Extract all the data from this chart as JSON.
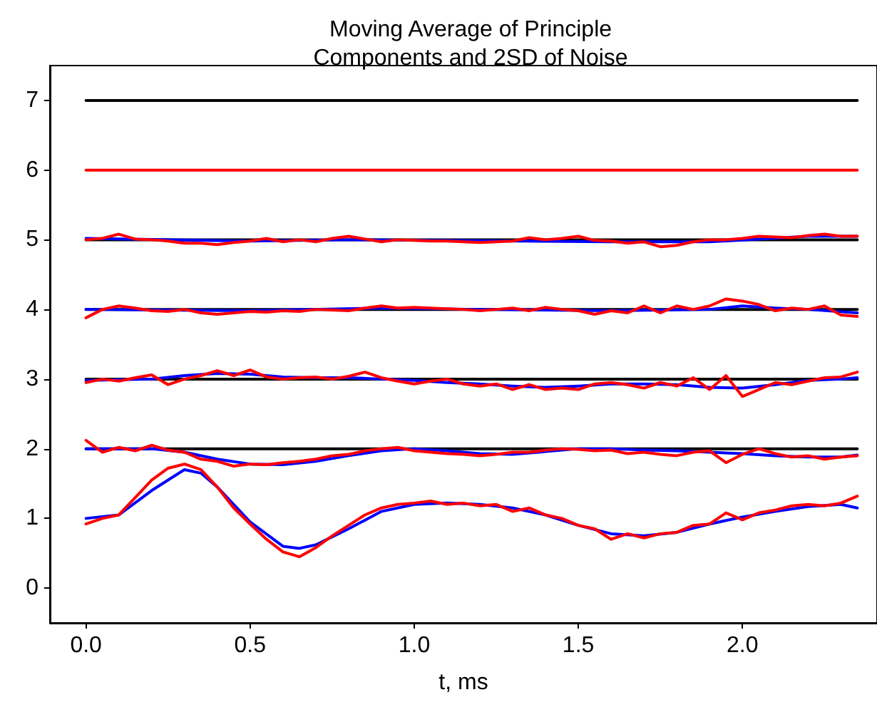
{
  "chart_data": {
    "type": "line",
    "title": "Moving Average of Principle\nComponents and 2SD of Noise",
    "xlabel": "t, ms",
    "xlim": [
      -0.11,
      2.41
    ],
    "xticks": [
      {
        "value": 0,
        "label": "0.0"
      },
      {
        "value": 0.5,
        "label": "0.5"
      },
      {
        "value": 1,
        "label": "1.0"
      },
      {
        "value": 1.5,
        "label": "1.5"
      },
      {
        "value": 2,
        "label": "2.0"
      }
    ],
    "ylim": [
      -0.5,
      7.5
    ],
    "yticks": [
      0,
      1,
      2,
      3,
      4,
      5,
      6,
      7
    ],
    "grid": false,
    "marker": "none",
    "line_style": "solid",
    "series": [
      {
        "color": "#000000",
        "x": [
          0,
          2.35
        ],
        "values": [
          7,
          7
        ]
      },
      {
        "color": "#000000",
        "x": [
          0,
          2.35
        ],
        "values": [
          5,
          5
        ]
      },
      {
        "color": "#000000",
        "x": [
          0,
          2.35
        ],
        "values": [
          4,
          4
        ]
      },
      {
        "color": "#000000",
        "x": [
          0,
          2.35
        ],
        "values": [
          3,
          3
        ]
      },
      {
        "color": "#000000",
        "x": [
          0,
          2.35
        ],
        "values": [
          2,
          2
        ]
      },
      {
        "color": "#0000ff",
        "x": [
          0,
          0.1,
          0.2,
          0.3,
          0.35,
          0.4,
          0.5,
          0.6,
          0.65,
          0.7,
          0.8,
          0.9,
          1.0,
          1.1,
          1.2,
          1.3,
          1.4,
          1.5,
          1.6,
          1.7,
          1.8,
          1.9,
          2.0,
          2.1,
          2.2,
          2.3,
          2.35
        ],
        "values": [
          1.0,
          1.05,
          1.4,
          1.7,
          1.65,
          1.45,
          0.95,
          0.6,
          0.57,
          0.62,
          0.85,
          1.1,
          1.2,
          1.22,
          1.2,
          1.15,
          1.05,
          0.9,
          0.78,
          0.75,
          0.8,
          0.92,
          1.02,
          1.1,
          1.17,
          1.2,
          1.15
        ]
      },
      {
        "color": "#0000ff",
        "x": [
          0,
          0.2,
          0.3,
          0.4,
          0.5,
          0.6,
          0.7,
          0.8,
          0.9,
          1.0,
          1.1,
          1.2,
          1.3,
          1.4,
          1.5,
          1.6,
          1.7,
          1.8,
          1.9,
          2.0,
          2.1,
          2.2,
          2.3,
          2.35
        ],
        "values": [
          2.0,
          2.0,
          1.95,
          1.85,
          1.78,
          1.77,
          1.82,
          1.9,
          1.97,
          2.0,
          1.97,
          1.93,
          1.92,
          1.96,
          2.0,
          2.0,
          1.98,
          1.97,
          1.95,
          1.93,
          1.9,
          1.88,
          1.88,
          1.91
        ]
      },
      {
        "color": "#0000ff",
        "x": [
          0,
          0.2,
          0.3,
          0.4,
          0.5,
          0.6,
          0.7,
          0.8,
          0.9,
          1.0,
          1.1,
          1.2,
          1.3,
          1.4,
          1.5,
          1.6,
          1.7,
          1.8,
          1.9,
          2.0,
          2.1,
          2.2,
          2.3,
          2.35
        ],
        "values": [
          2.98,
          3.0,
          3.05,
          3.08,
          3.07,
          3.03,
          3.02,
          3.02,
          3.0,
          2.98,
          2.95,
          2.93,
          2.9,
          2.88,
          2.9,
          2.93,
          2.93,
          2.92,
          2.88,
          2.87,
          2.92,
          2.98,
          3.0,
          3.02
        ]
      },
      {
        "color": "#0000ff",
        "x": [
          0,
          0.5,
          0.9,
          1.2,
          1.6,
          1.9,
          2.0,
          2.1,
          2.2,
          2.35
        ],
        "values": [
          4.0,
          3.98,
          4.02,
          4.0,
          3.98,
          4.0,
          4.05,
          4.02,
          4.0,
          3.95
        ]
      },
      {
        "color": "#0000ff",
        "x": [
          0,
          0.5,
          0.8,
          1.6,
          1.9,
          2.2,
          2.35
        ],
        "values": [
          5.02,
          4.98,
          5.0,
          4.97,
          4.97,
          5.05,
          5.05
        ]
      },
      {
        "color": "#ff0000",
        "x": [
          0,
          2.35
        ],
        "values": [
          6,
          6
        ]
      },
      {
        "color": "#ff0000",
        "x": [
          0,
          0.05,
          0.1,
          0.15,
          0.2,
          0.25,
          0.3,
          0.35,
          0.4,
          0.45,
          0.5,
          0.55,
          0.6,
          0.65,
          0.7,
          0.75,
          0.8,
          0.85,
          0.9,
          0.95,
          1.0,
          1.05,
          1.1,
          1.15,
          1.2,
          1.25,
          1.3,
          1.35,
          1.4,
          1.45,
          1.5,
          1.55,
          1.6,
          1.65,
          1.7,
          1.75,
          1.8,
          1.85,
          1.9,
          1.95,
          2.0,
          2.05,
          2.1,
          2.15,
          2.2,
          2.25,
          2.3,
          2.35
        ],
        "values": [
          0.92,
          1.0,
          1.05,
          1.3,
          1.55,
          1.72,
          1.78,
          1.7,
          1.45,
          1.15,
          0.92,
          0.7,
          0.52,
          0.45,
          0.58,
          0.75,
          0.9,
          1.05,
          1.15,
          1.2,
          1.22,
          1.25,
          1.2,
          1.22,
          1.18,
          1.2,
          1.1,
          1.15,
          1.05,
          1.0,
          0.9,
          0.85,
          0.7,
          0.78,
          0.72,
          0.78,
          0.8,
          0.9,
          0.92,
          1.08,
          0.98,
          1.08,
          1.12,
          1.18,
          1.2,
          1.18,
          1.22,
          1.32
        ]
      },
      {
        "color": "#ff0000",
        "x": [
          0,
          0.05,
          0.1,
          0.15,
          0.2,
          0.25,
          0.3,
          0.35,
          0.4,
          0.45,
          0.5,
          0.55,
          0.6,
          0.65,
          0.7,
          0.75,
          0.8,
          0.85,
          0.9,
          0.95,
          1.0,
          1.05,
          1.1,
          1.15,
          1.2,
          1.25,
          1.3,
          1.35,
          1.4,
          1.45,
          1.5,
          1.55,
          1.6,
          1.65,
          1.7,
          1.75,
          1.8,
          1.85,
          1.9,
          1.95,
          2.0,
          2.05,
          2.1,
          2.15,
          2.2,
          2.25,
          2.3,
          2.35
        ],
        "values": [
          2.12,
          1.95,
          2.02,
          1.97,
          2.05,
          1.98,
          1.95,
          1.85,
          1.82,
          1.75,
          1.78,
          1.77,
          1.8,
          1.82,
          1.85,
          1.9,
          1.92,
          1.97,
          2.0,
          2.02,
          1.97,
          1.95,
          1.93,
          1.92,
          1.9,
          1.92,
          1.95,
          1.95,
          1.98,
          2.0,
          1.99,
          1.97,
          1.98,
          1.93,
          1.95,
          1.92,
          1.9,
          1.95,
          1.97,
          1.8,
          1.92,
          2.0,
          1.93,
          1.88,
          1.9,
          1.85,
          1.88,
          1.9
        ]
      },
      {
        "color": "#ff0000",
        "x": [
          0,
          0.05,
          0.1,
          0.15,
          0.2,
          0.25,
          0.3,
          0.35,
          0.4,
          0.45,
          0.5,
          0.55,
          0.6,
          0.65,
          0.7,
          0.75,
          0.8,
          0.85,
          0.9,
          0.95,
          1.0,
          1.05,
          1.1,
          1.15,
          1.2,
          1.25,
          1.3,
          1.35,
          1.4,
          1.45,
          1.5,
          1.55,
          1.6,
          1.65,
          1.7,
          1.75,
          1.8,
          1.85,
          1.9,
          1.95,
          2.0,
          2.05,
          2.1,
          2.15,
          2.2,
          2.25,
          2.3,
          2.35
        ],
        "values": [
          2.95,
          3.0,
          2.97,
          3.02,
          3.06,
          2.92,
          3.0,
          3.05,
          3.12,
          3.05,
          3.13,
          3.03,
          3.0,
          3.02,
          3.03,
          3.0,
          3.04,
          3.1,
          3.02,
          2.97,
          2.93,
          2.97,
          3.0,
          2.93,
          2.9,
          2.93,
          2.85,
          2.92,
          2.85,
          2.87,
          2.85,
          2.93,
          2.95,
          2.92,
          2.87,
          2.95,
          2.9,
          3.02,
          2.85,
          3.05,
          2.75,
          2.85,
          2.95,
          2.92,
          2.97,
          3.02,
          3.03,
          3.1
        ]
      },
      {
        "color": "#ff0000",
        "x": [
          0,
          0.05,
          0.1,
          0.15,
          0.2,
          0.25,
          0.3,
          0.35,
          0.4,
          0.45,
          0.5,
          0.55,
          0.6,
          0.65,
          0.7,
          0.75,
          0.8,
          0.85,
          0.9,
          0.95,
          1.0,
          1.05,
          1.1,
          1.15,
          1.2,
          1.25,
          1.3,
          1.35,
          1.4,
          1.45,
          1.5,
          1.55,
          1.6,
          1.65,
          1.7,
          1.75,
          1.8,
          1.85,
          1.9,
          1.95,
          2.0,
          2.05,
          2.1,
          2.15,
          2.2,
          2.25,
          2.3,
          2.35
        ],
        "values": [
          3.88,
          4.0,
          4.05,
          4.02,
          3.98,
          3.97,
          4.0,
          3.95,
          3.93,
          3.95,
          3.97,
          3.96,
          3.98,
          3.97,
          4.0,
          3.99,
          3.98,
          4.02,
          4.05,
          4.02,
          4.03,
          4.02,
          4.01,
          4.0,
          3.98,
          4.0,
          4.02,
          3.98,
          4.03,
          4.0,
          3.98,
          3.93,
          3.98,
          3.95,
          4.05,
          3.95,
          4.05,
          4.0,
          4.05,
          4.15,
          4.12,
          4.07,
          3.98,
          4.02,
          4.0,
          4.05,
          3.92,
          3.9
        ]
      },
      {
        "color": "#ff0000",
        "x": [
          0,
          0.05,
          0.1,
          0.15,
          0.2,
          0.25,
          0.3,
          0.35,
          0.4,
          0.45,
          0.5,
          0.55,
          0.6,
          0.65,
          0.7,
          0.75,
          0.8,
          0.85,
          0.9,
          0.95,
          1.0,
          1.05,
          1.1,
          1.15,
          1.2,
          1.25,
          1.3,
          1.35,
          1.4,
          1.45,
          1.5,
          1.55,
          1.6,
          1.65,
          1.7,
          1.75,
          1.8,
          1.85,
          1.9,
          1.95,
          2.0,
          2.05,
          2.1,
          2.15,
          2.2,
          2.25,
          2.3,
          2.35
        ],
        "values": [
          5.0,
          5.02,
          5.08,
          5.01,
          5.0,
          4.98,
          4.95,
          4.95,
          4.93,
          4.96,
          4.98,
          5.02,
          4.97,
          5.0,
          4.97,
          5.02,
          5.05,
          5.01,
          4.97,
          5.0,
          4.99,
          4.98,
          4.98,
          4.97,
          4.96,
          4.97,
          4.98,
          5.03,
          5.0,
          5.02,
          5.05,
          4.99,
          4.98,
          4.95,
          4.97,
          4.9,
          4.92,
          4.97,
          5.0,
          5.0,
          5.02,
          5.05,
          5.04,
          5.03,
          5.06,
          5.08,
          5.05,
          5.05
        ]
      }
    ]
  }
}
